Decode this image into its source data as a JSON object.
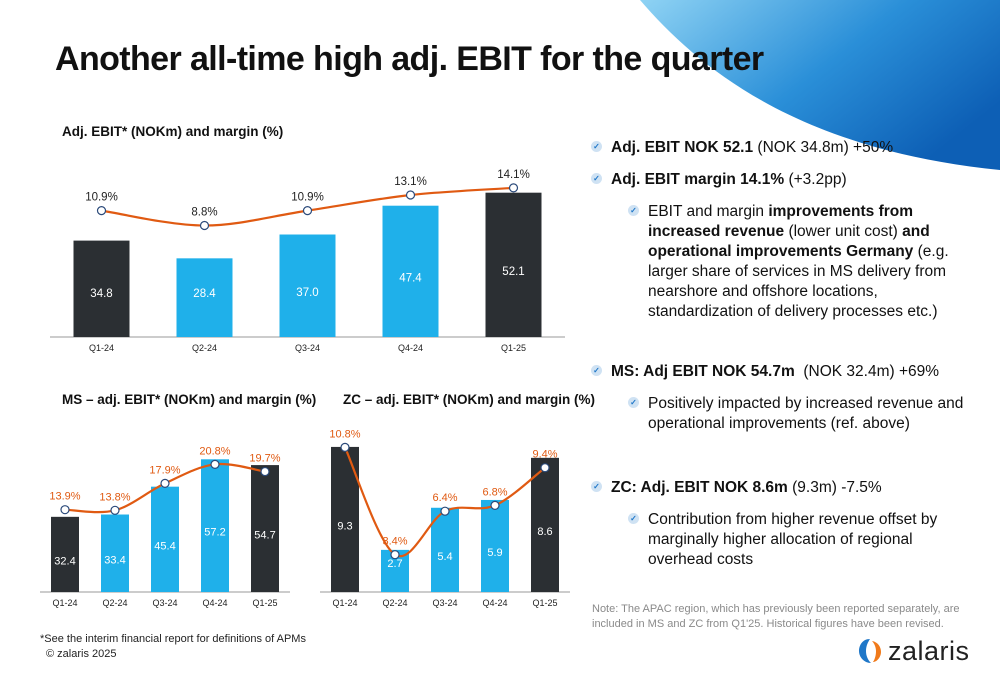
{
  "title": "Another all-time high adj. EBIT for the quarter",
  "colors": {
    "dark": "#2b2f33",
    "blue": "#1fb0ea",
    "line": "#e05a12",
    "accent": "#1f77c8"
  },
  "chart_data": [
    {
      "type": "bar",
      "title": "Adj. EBIT* (NOKm) and margin (%)",
      "categories": [
        "Q1-24",
        "Q2-24",
        "Q3-24",
        "Q4-24",
        "Q1-25"
      ],
      "series": [
        {
          "values": [
            34.8,
            28.4,
            37.0,
            47.4,
            52.1
          ],
          "labels": [
            "34.8",
            "28.4",
            "37.0",
            "47.4",
            "52.1"
          ],
          "bar_colors": [
            "dark",
            "blue",
            "blue",
            "blue",
            "dark"
          ]
        },
        {
          "type": "line",
          "values": [
            10.9,
            8.8,
            10.9,
            13.1,
            14.1
          ],
          "labels": [
            "10.9%",
            "8.8%",
            "10.9%",
            "13.1%",
            "14.1%"
          ]
        }
      ]
    },
    {
      "type": "bar",
      "title": "MS – adj. EBIT* (NOKm) and margin (%)",
      "categories": [
        "Q1-24",
        "Q2-24",
        "Q3-24",
        "Q4-24",
        "Q1-25"
      ],
      "series": [
        {
          "values": [
            32.4,
            33.4,
            45.4,
            57.2,
            54.7
          ],
          "labels": [
            "32.4",
            "33.4",
            "45.4",
            "57.2",
            "54.7"
          ],
          "bar_colors": [
            "dark",
            "blue",
            "blue",
            "blue",
            "dark"
          ]
        },
        {
          "type": "line",
          "values": [
            13.9,
            13.8,
            17.9,
            20.8,
            19.7
          ],
          "labels": [
            "13.9%",
            "13.8%",
            "17.9%",
            "20.8%",
            "19.7%"
          ]
        }
      ]
    },
    {
      "type": "bar",
      "title": "ZC – adj. EBIT* (NOKm) and margin (%)",
      "categories": [
        "Q1-24",
        "Q2-24",
        "Q3-24",
        "Q4-24",
        "Q1-25"
      ],
      "series": [
        {
          "values": [
            9.3,
            2.7,
            5.4,
            5.9,
            8.6
          ],
          "labels": [
            "9.3",
            "2.7",
            "5.4",
            "5.9",
            "8.6"
          ],
          "bar_colors": [
            "dark",
            "blue",
            "blue",
            "blue",
            "dark"
          ]
        },
        {
          "type": "line",
          "values": [
            10.8,
            3.4,
            6.4,
            6.8,
            9.4
          ],
          "labels": [
            "10.8%",
            "3.4%",
            "6.4%",
            "6.8%",
            "9.4%"
          ]
        }
      ]
    }
  ],
  "bullets": {
    "b1": {
      "bold": "Adj. EBIT NOK 52.1",
      "rest": " (NOK 34.8m) +50%"
    },
    "b2": {
      "bold": "Adj. EBIT margin 14.1%",
      "rest": " (+3.2pp)"
    },
    "sub1": {
      "p1": "EBIT and margin ",
      "b1": "improvements from increased revenue",
      "p2": " (lower unit cost) ",
      "b2": "and operational improvements Germany",
      "p3": " (e.g. larger share of services in MS delivery from nearshore and offshore locations, standardization of delivery processes etc.)"
    },
    "b3": {
      "bold": "MS: Adj EBIT NOK 54.7m",
      "rest": "  (NOK 32.4m) +69%"
    },
    "sub2": {
      "text": "Positively impacted by increased revenue and operational improvements (ref. above)"
    },
    "b4": {
      "bold": "ZC: Adj. EBIT NOK 8.6m",
      "rest": " (9.3m) -7.5%"
    },
    "sub3": {
      "text": "Contribution from higher revenue offset by marginally higher allocation of regional overhead costs"
    }
  },
  "note": "Note: The APAC region, which has previously been reported separately, are included in MS and ZC from Q1'25. Historical figures have been revised.",
  "footnote": "*See the interim financial report for definitions of APMs",
  "copyright": "© zalaris 2025",
  "logo": {
    "text": "zalaris"
  }
}
